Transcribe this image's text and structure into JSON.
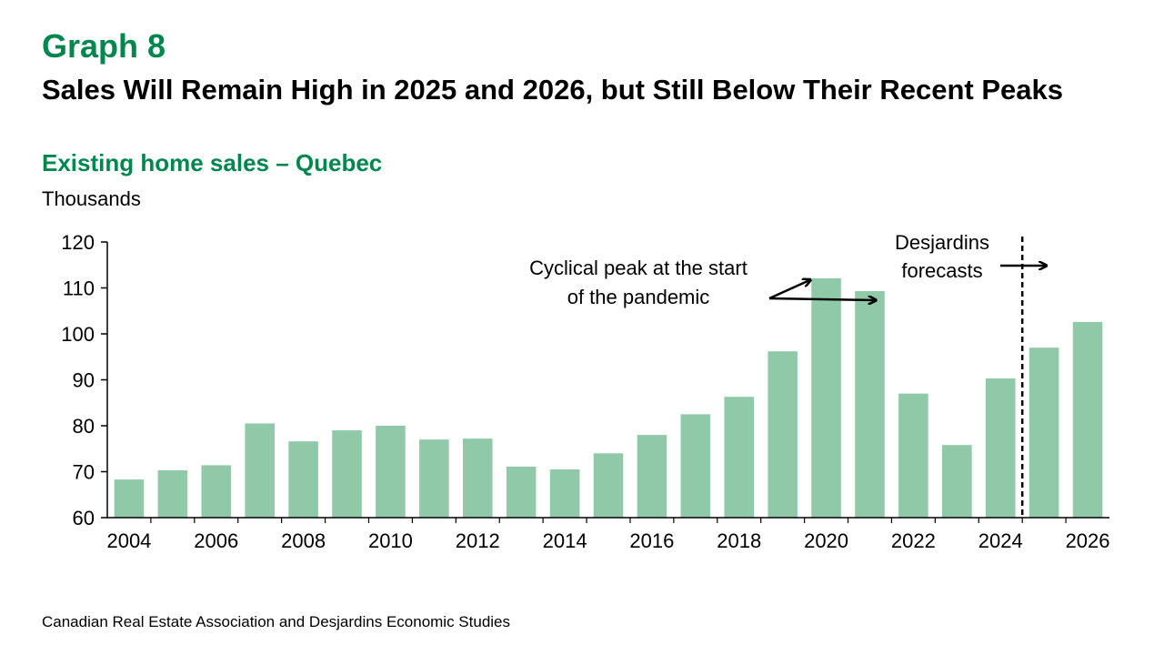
{
  "header": {
    "graph_number": "Graph 8",
    "title": "Sales Will Remain High in 2025 and 2026, but Still Below Their Recent Peaks",
    "subtitle": "Existing home sales – Quebec",
    "unit": "Thousands"
  },
  "source": "Canadian Real Estate Association and Desjardins Economic Studies",
  "annotations": {
    "peak_line1": "Cyclical peak at the start",
    "peak_line2": "of the pandemic",
    "forecast_line1": "Desjardins",
    "forecast_line2": "forecasts"
  },
  "colors": {
    "bar": "#8FC9A8",
    "accent": "#00874E"
  },
  "chart_data": {
    "type": "bar",
    "categories": [
      "2004",
      "2005",
      "2006",
      "2007",
      "2008",
      "2009",
      "2010",
      "2011",
      "2012",
      "2013",
      "2014",
      "2015",
      "2016",
      "2017",
      "2018",
      "2019",
      "2020",
      "2021",
      "2022",
      "2023",
      "2024",
      "2025",
      "2026"
    ],
    "values": [
      68.3,
      70.3,
      71.4,
      80.5,
      76.6,
      79.0,
      80.0,
      77.0,
      77.2,
      71.1,
      70.5,
      74.0,
      78.0,
      82.5,
      86.3,
      96.2,
      112.1,
      109.3,
      87.0,
      75.8,
      90.3,
      97.0,
      102.6
    ],
    "x_tick_labels": [
      "2004",
      "2006",
      "2008",
      "2010",
      "2012",
      "2014",
      "2016",
      "2018",
      "2020",
      "2022",
      "2024",
      "2026"
    ],
    "y_ticks": [
      60,
      70,
      80,
      90,
      100,
      110,
      120
    ],
    "ylim": [
      60,
      120
    ],
    "ylabel": "Thousands",
    "xlabel": "",
    "grid": false,
    "forecast_start": "2025"
  }
}
